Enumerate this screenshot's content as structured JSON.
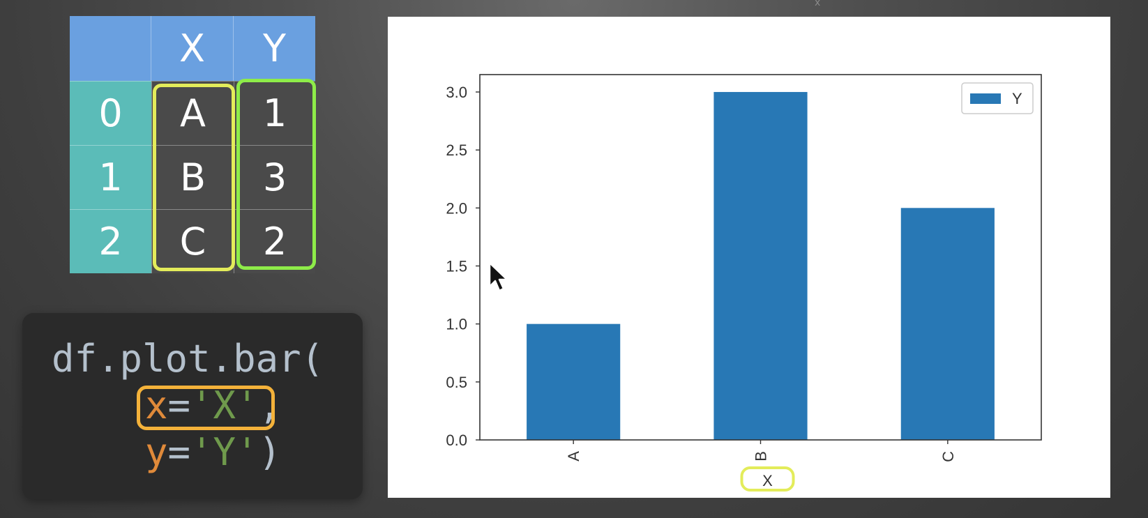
{
  "table": {
    "columns": [
      "",
      "X",
      "Y"
    ],
    "rows": [
      {
        "index": "0",
        "x": "A",
        "y": "1"
      },
      {
        "index": "1",
        "x": "B",
        "y": "3"
      },
      {
        "index": "2",
        "x": "C",
        "y": "2"
      }
    ]
  },
  "code": {
    "line1": "df.plot.bar(",
    "x_kw": "x",
    "y_kw": "y",
    "eq": "=",
    "x_val": "'X'",
    "comma": ",",
    "y_val": "'Y'",
    "close": ")"
  },
  "colors": {
    "header": "#6aa0e0",
    "index": "#5bbcb8",
    "x_highlight": "#e3ec5a",
    "y_highlight": "#8eec49",
    "code_highlight": "#f4b23a",
    "bar": "#2878b5"
  },
  "top_mark": "x",
  "chart_data": {
    "type": "bar",
    "categories": [
      "A",
      "B",
      "C"
    ],
    "series": [
      {
        "name": "Y",
        "values": [
          1,
          3,
          2
        ]
      }
    ],
    "xlabel": "X",
    "ylabel": "",
    "ylim": [
      0,
      3.15
    ],
    "yticks": [
      "0.0",
      "0.5",
      "1.0",
      "1.5",
      "2.0",
      "2.5",
      "3.0"
    ],
    "legend": "top-right",
    "grid": false
  }
}
